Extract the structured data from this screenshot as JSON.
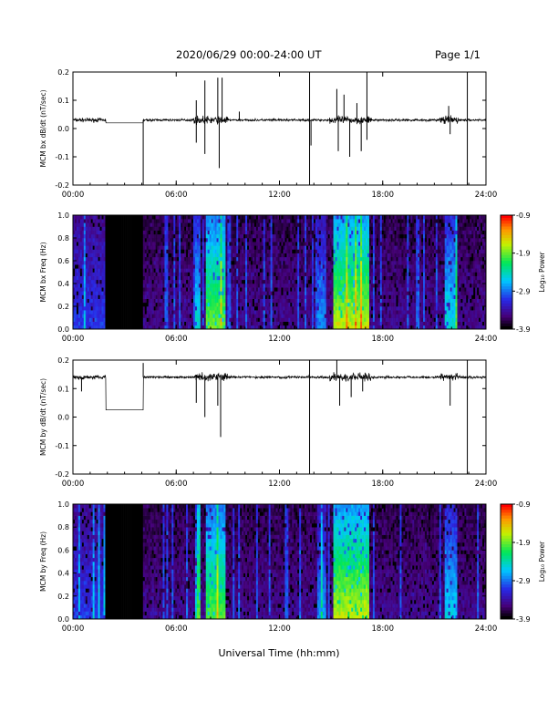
{
  "header": {
    "title": "2020/06/29  00:00-24:00 UT",
    "page": "Page 1/1"
  },
  "xlabel": "Universal Time (hh:mm)",
  "xticks": [
    "00:00",
    "06:00",
    "12:00",
    "18:00",
    "24:00"
  ],
  "colors": {
    "background": "#ffffff",
    "ink": "#000000"
  },
  "chart_data": [
    {
      "type": "line",
      "ylabel": "MCM bx dB/dt (nT/sec)",
      "ylim": [
        -0.2,
        0.2
      ],
      "yticks": [
        "-0.2",
        "-0.1",
        "0.0",
        "0.1",
        "0.2"
      ],
      "xlim": [
        "00:00",
        "24:00"
      ],
      "baseline": 0.03,
      "gap": {
        "from": "01:55",
        "to": "04:05",
        "level": 0.02
      },
      "spikes": [
        {
          "t": "04:05",
          "y": -0.2
        },
        {
          "t": "07:10",
          "y": 0.1
        },
        {
          "t": "07:10",
          "y": -0.05
        },
        {
          "t": "07:40",
          "y": 0.17
        },
        {
          "t": "07:40",
          "y": -0.09
        },
        {
          "t": "08:25",
          "y": 0.18
        },
        {
          "t": "08:30",
          "y": -0.14
        },
        {
          "t": "08:40",
          "y": 0.18
        },
        {
          "t": "13:45",
          "y": 0.2
        },
        {
          "t": "13:45",
          "y": -0.2
        },
        {
          "t": "15:20",
          "y": 0.14
        },
        {
          "t": "15:25",
          "y": -0.08
        },
        {
          "t": "15:45",
          "y": 0.12
        },
        {
          "t": "16:05",
          "y": -0.1
        },
        {
          "t": "16:30",
          "y": 0.09
        },
        {
          "t": "16:45",
          "y": -0.08
        },
        {
          "t": "17:05",
          "y": 0.2
        },
        {
          "t": "17:05",
          "y": -0.04
        },
        {
          "t": "22:55",
          "y": 0.2
        },
        {
          "t": "22:55",
          "y": -0.2
        },
        {
          "t": "21:50",
          "y": 0.08
        },
        {
          "t": "21:55",
          "y": -0.02
        },
        {
          "t": "09:40",
          "y": 0.06
        },
        {
          "t": "13:50",
          "y": -0.06
        }
      ]
    },
    {
      "type": "heatmap",
      "ylabel": "MCM bx Freq (Hz)",
      "ylim": [
        0.0,
        1.0
      ],
      "yticks": [
        "0.0",
        "0.2",
        "0.4",
        "0.6",
        "0.8",
        "1.0"
      ],
      "xlim": [
        "00:00",
        "24:00"
      ],
      "colorbar": {
        "label": "Log₁₀ Power",
        "range": [
          -3.9,
          -0.9
        ],
        "ticks": [
          "-0.9",
          "-1.9",
          "-2.9",
          "-3.9"
        ]
      },
      "no_data": {
        "from": "01:50",
        "to": "04:05"
      },
      "active": [
        {
          "from": "07:05",
          "to": "07:25",
          "power": 0.45
        },
        {
          "from": "07:45",
          "to": "08:55",
          "power": 0.65
        },
        {
          "from": "14:10",
          "to": "14:40",
          "power": 0.35
        },
        {
          "from": "15:10",
          "to": "17:10",
          "power": 0.72
        },
        {
          "from": "21:35",
          "to": "22:20",
          "power": 0.45
        },
        {
          "from": "00:00",
          "to": "01:50",
          "power": 0.25
        }
      ]
    },
    {
      "type": "line",
      "ylabel": "MCM by dB/dt (nT/sec)",
      "ylim": [
        -0.2,
        0.2
      ],
      "yticks": [
        "-0.2",
        "-0.1",
        "0.0",
        "0.1",
        "0.2"
      ],
      "xlim": [
        "00:00",
        "24:00"
      ],
      "baseline": 0.14,
      "gap": {
        "from": "01:55",
        "to": "04:05",
        "level": 0.025
      },
      "spikes": [
        {
          "t": "04:05",
          "y": 0.19
        },
        {
          "t": "07:10",
          "y": 0.05
        },
        {
          "t": "07:40",
          "y": 0.0
        },
        {
          "t": "08:25",
          "y": 0.04
        },
        {
          "t": "08:35",
          "y": -0.07
        },
        {
          "t": "13:45",
          "y": 0.2
        },
        {
          "t": "13:45",
          "y": -0.2
        },
        {
          "t": "15:20",
          "y": 0.2
        },
        {
          "t": "15:30",
          "y": 0.04
        },
        {
          "t": "16:10",
          "y": 0.07
        },
        {
          "t": "16:50",
          "y": 0.09
        },
        {
          "t": "21:55",
          "y": 0.04
        },
        {
          "t": "22:55",
          "y": -0.2
        },
        {
          "t": "22:55",
          "y": 0.2
        },
        {
          "t": "00:30",
          "y": 0.09
        }
      ]
    },
    {
      "type": "heatmap",
      "ylabel": "MCM by Freq (Hz)",
      "ylim": [
        0.0,
        1.0
      ],
      "yticks": [
        "0.0",
        "0.2",
        "0.4",
        "0.6",
        "0.8",
        "1.0"
      ],
      "xlim": [
        "00:00",
        "24:00"
      ],
      "colorbar": {
        "label": "Log₁₀ Power",
        "range": [
          -3.9,
          -0.9
        ],
        "ticks": [
          "-0.9",
          "-1.9",
          "-2.9",
          "-3.9"
        ]
      },
      "no_data": {
        "from": "01:50",
        "to": "04:05"
      },
      "active": [
        {
          "from": "07:05",
          "to": "07:25",
          "power": 0.45
        },
        {
          "from": "07:45",
          "to": "08:55",
          "power": 0.62
        },
        {
          "from": "14:10",
          "to": "14:40",
          "power": 0.35
        },
        {
          "from": "15:10",
          "to": "17:10",
          "power": 0.72
        },
        {
          "from": "21:35",
          "to": "22:20",
          "power": 0.42
        },
        {
          "from": "00:00",
          "to": "01:50",
          "power": 0.25
        }
      ]
    }
  ]
}
